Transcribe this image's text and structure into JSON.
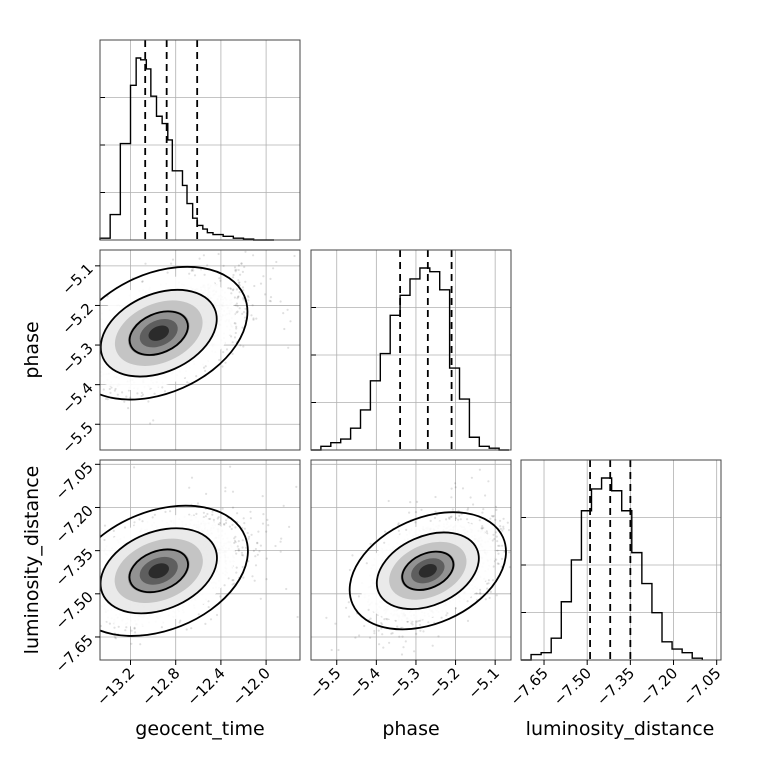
{
  "chart_data": {
    "type": "corner",
    "parameters": [
      "geocent_time",
      "phase",
      "luminosity_distance"
    ],
    "axes": {
      "geocent_time": {
        "range": [
          -13.47,
          -11.7
        ],
        "ticks": [
          -13.2,
          -12.8,
          -12.4,
          -12.0
        ],
        "tick_labels": [
          "−13.2",
          "−12.8",
          "−12.4",
          "−12.0"
        ]
      },
      "phase": {
        "range": [
          -5.565,
          -5.06
        ],
        "ticks": [
          -5.5,
          -5.4,
          -5.3,
          -5.2,
          -5.1
        ],
        "tick_labels": [
          "−5.5",
          "−5.4",
          "−5.3",
          "−5.2",
          "−5.1"
        ]
      },
      "luminosity_distance": {
        "range": [
          -7.73,
          -7.035
        ],
        "ticks": [
          -7.65,
          -7.5,
          -7.35,
          -7.2,
          -7.05
        ],
        "tick_labels": [
          "−7.65",
          "−7.50",
          "−7.35",
          "−7.20",
          "−7.05"
        ]
      }
    },
    "histograms": [
      {
        "parameter": "geocent_time",
        "bins": [
          -13.47,
          -13.38,
          -13.29,
          -13.2,
          -13.15,
          -13.11,
          -13.06,
          -13.02,
          -12.97,
          -12.92,
          -12.87,
          -12.83,
          -12.79,
          -12.74,
          -12.7,
          -12.65,
          -12.61,
          -12.56,
          -12.52,
          -12.47,
          -12.38,
          -12.29,
          -12.2,
          -12.11,
          -12.02,
          -11.93
        ],
        "counts": [
          0.01,
          0.14,
          0.53,
          0.85,
          1.0,
          0.99,
          0.94,
          0.79,
          0.68,
          0.64,
          0.55,
          0.38,
          0.38,
          0.3,
          0.2,
          0.12,
          0.08,
          0.06,
          0.04,
          0.03,
          0.02,
          0.01,
          0.005,
          0.0,
          0.0
        ],
        "quantiles": [
          -13.07,
          -12.88,
          -12.61
        ]
      },
      {
        "parameter": "phase",
        "bins": [
          -5.565,
          -5.54,
          -5.515,
          -5.49,
          -5.465,
          -5.44,
          -5.415,
          -5.39,
          -5.365,
          -5.34,
          -5.315,
          -5.29,
          -5.265,
          -5.24,
          -5.215,
          -5.19,
          -5.165,
          -5.14,
          -5.115,
          -5.09,
          -5.065
        ],
        "counts": [
          0.0,
          0.02,
          0.04,
          0.06,
          0.12,
          0.22,
          0.38,
          0.53,
          0.74,
          0.85,
          0.94,
          1.0,
          0.98,
          0.88,
          0.45,
          0.28,
          0.07,
          0.02,
          0.01,
          0.0
        ],
        "quantiles": [
          -5.34,
          -5.27,
          -5.21
        ]
      },
      {
        "parameter": "luminosity_distance",
        "bins": [
          -7.73,
          -7.695,
          -7.66,
          -7.625,
          -7.59,
          -7.555,
          -7.52,
          -7.485,
          -7.45,
          -7.415,
          -7.38,
          -7.345,
          -7.31,
          -7.275,
          -7.24,
          -7.205,
          -7.17,
          -7.135,
          -7.1
        ],
        "counts": [
          0.0,
          0.03,
          0.04,
          0.12,
          0.32,
          0.55,
          0.82,
          0.94,
          1.0,
          0.93,
          0.82,
          0.59,
          0.42,
          0.26,
          0.1,
          0.06,
          0.04,
          0.01
        ],
        "quantiles": [
          -7.49,
          -7.42,
          -7.35
        ]
      }
    ],
    "scatter_2d": [
      {
        "x": "geocent_time",
        "y": "phase",
        "center": [
          -12.95,
          -5.27
        ],
        "sigma": [
          0.24,
          0.055
        ],
        "corr": 0.55
      },
      {
        "x": "geocent_time",
        "y": "luminosity_distance",
        "center": [
          -12.95,
          -7.42
        ],
        "sigma": [
          0.24,
          0.075
        ],
        "corr": 0.5
      },
      {
        "x": "phase",
        "y": "luminosity_distance",
        "center": [
          -5.27,
          -7.42
        ],
        "sigma": [
          0.055,
          0.075
        ],
        "corr": 0.45
      }
    ],
    "contour_levels": [
      0.39,
      0.86,
      0.99
    ],
    "grid": true
  },
  "labels": {
    "x_bottom": [
      "geocent_time",
      "phase",
      "luminosity_distance"
    ],
    "y_left": [
      "phase",
      "luminosity_distance"
    ]
  }
}
